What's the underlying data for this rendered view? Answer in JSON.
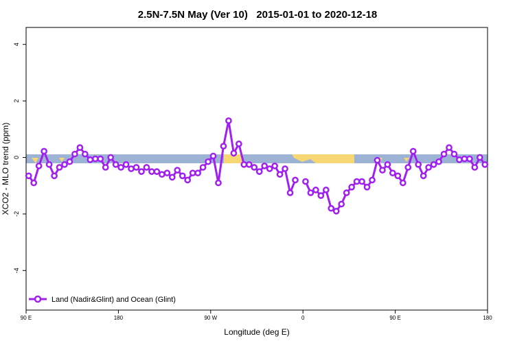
{
  "chart_data": {
    "type": "line",
    "title": "2.5N-7.5N May (Ver 10)   2015-01-01 to 2020-12-18",
    "x_label": "Longitude (deg E)",
    "y_label": "XCO2 - MLO trend (ppm)",
    "xlim": [
      90,
      540
    ],
    "ylim": [
      -5.4,
      4.6
    ],
    "xticks": [
      {
        "value": 90,
        "label": "90 E"
      },
      180,
      {
        "value": 270,
        "label": "90 W"
      },
      {
        "value": 360,
        "label": "0"
      },
      {
        "value": 450,
        "label": "90 E"
      },
      {
        "value": 540,
        "label": "180"
      }
    ],
    "yticks": [
      -4,
      -2,
      0,
      2,
      4
    ],
    "legend": "bottom-left",
    "x": [
      92.5,
      97.5,
      102.5,
      107.5,
      112.5,
      117.5,
      122.5,
      127.5,
      132.5,
      137.5,
      142.5,
      147.5,
      152.5,
      157.5,
      162.5,
      167.5,
      172.5,
      177.5,
      182.5,
      187.5,
      192.5,
      197.5,
      202.5,
      207.5,
      212.5,
      217.5,
      222.5,
      227.5,
      232.5,
      237.5,
      242.5,
      247.5,
      252.5,
      257.5,
      262.5,
      267.5,
      272.5,
      277.5,
      282.5,
      287.5,
      292.5,
      297.5,
      302.5,
      307.5,
      312.5,
      317.5,
      322.5,
      327.5,
      332.5,
      337.5,
      342.5,
      347.5,
      352.5,
      357.5,
      362.5,
      367.5,
      372.5,
      377.5,
      382.5,
      387.5,
      392.5,
      397.5,
      402.5,
      407.5,
      412.5,
      417.5,
      422.5,
      427.5,
      432.5,
      437.5,
      442.5,
      447.5,
      452.5,
      457.5,
      462.5,
      467.5,
      472.5,
      477.5,
      482.5,
      487.5,
      492.5,
      497.5,
      502.5,
      507.5,
      512.5,
      517.5,
      522.5,
      527.5,
      532.5,
      537.5
    ],
    "series": [
      {
        "name": "Land (Nadir&Glint) and Ocean (Glint)",
        "color": "#a020f0",
        "values": [
          -0.65,
          -0.9,
          -0.3,
          0.22,
          -0.25,
          -0.65,
          -0.35,
          -0.25,
          -0.15,
          0.12,
          0.35,
          0.12,
          -0.08,
          -0.05,
          -0.05,
          -0.35,
          0.0,
          -0.25,
          -0.35,
          -0.25,
          -0.4,
          -0.35,
          -0.5,
          -0.35,
          -0.5,
          -0.5,
          -0.6,
          -0.55,
          -0.7,
          -0.45,
          -0.65,
          -0.8,
          -0.55,
          -0.55,
          -0.35,
          -0.15,
          0.05,
          -0.9,
          0.4,
          1.3,
          0.15,
          0.48,
          -0.25,
          -0.25,
          -0.35,
          -0.5,
          -0.3,
          -0.4,
          -0.3,
          -0.6,
          -0.4,
          -1.25,
          -0.8,
          null,
          -0.85,
          -1.25,
          -1.15,
          -1.35,
          -1.15,
          -1.8,
          -1.9,
          -1.65,
          -1.25,
          -1.05,
          -0.85,
          -0.85,
          -1.05,
          -0.8,
          -0.1,
          -0.45,
          -0.25,
          -0.55,
          -0.65,
          -0.9,
          -0.35,
          0.22,
          -0.25,
          -0.65,
          -0.35,
          -0.25,
          -0.15,
          0.12,
          0.35,
          0.12,
          -0.08,
          -0.05,
          -0.05,
          -0.35,
          0.0,
          -0.25
        ]
      }
    ]
  }
}
